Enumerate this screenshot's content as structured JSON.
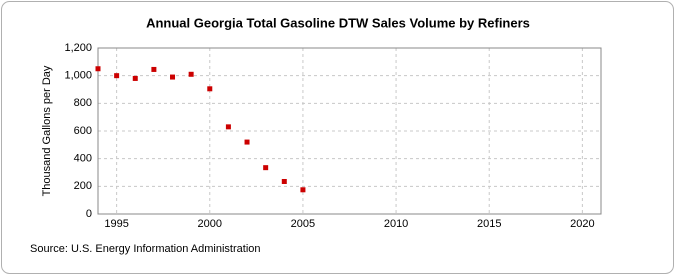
{
  "chart_data": {
    "type": "scatter",
    "title": "Annual Georgia Total Gasoline DTW Sales Volume by Refiners",
    "y_label": "Thousand Gallons per Day",
    "source": "Source: U.S. Energy Information Administration",
    "x": [
      1994,
      1995,
      1996,
      1997,
      1998,
      1999,
      2000,
      2001,
      2002,
      2003,
      2004,
      2005
    ],
    "values": [
      1050,
      1000,
      980,
      1045,
      990,
      1010,
      905,
      630,
      520,
      335,
      235,
      175
    ],
    "color": "#cc0000",
    "xlim": [
      1994,
      2021
    ],
    "xticks": [
      1995,
      2000,
      2005,
      2010,
      2015,
      2020
    ],
    "ylim": [
      0,
      1200
    ],
    "yticks": [
      0,
      200,
      400,
      600,
      800,
      {
        "value": 1000,
        "label": "1,000"
      },
      {
        "value": 1200,
        "label": "1,200"
      }
    ],
    "grid": true
  }
}
